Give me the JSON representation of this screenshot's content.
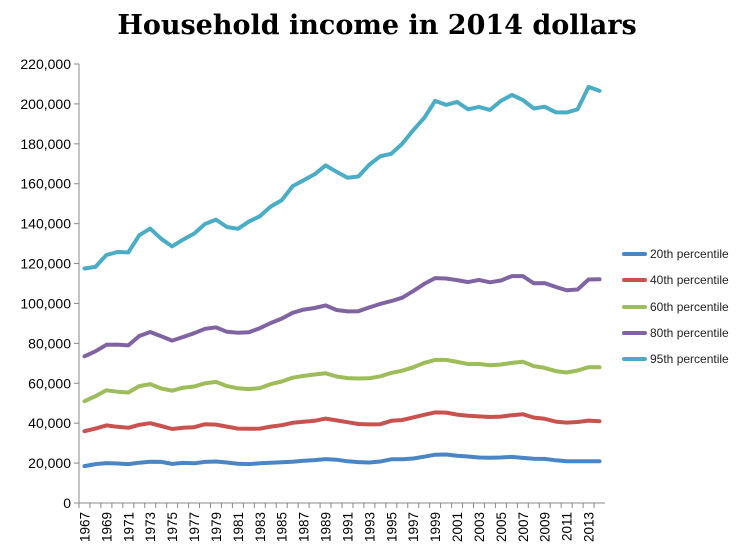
{
  "chart_data": {
    "type": "line",
    "title": "Household income in 2014 dollars",
    "xlabel": "",
    "ylabel": "",
    "x": [
      1967,
      1968,
      1969,
      1970,
      1971,
      1972,
      1973,
      1974,
      1975,
      1976,
      1977,
      1978,
      1979,
      1980,
      1981,
      1982,
      1983,
      1984,
      1985,
      1986,
      1987,
      1988,
      1989,
      1990,
      1991,
      1992,
      1993,
      1994,
      1995,
      1996,
      1997,
      1998,
      1999,
      2000,
      2001,
      2002,
      2003,
      2004,
      2005,
      2006,
      2007,
      2008,
      2009,
      2010,
      2011,
      2012,
      2013,
      2014
    ],
    "x_tick_labels": [
      "1967",
      "1969",
      "1971",
      "1973",
      "1975",
      "1977",
      "1979",
      "1981",
      "1983",
      "1985",
      "1987",
      "1989",
      "1991",
      "1993",
      "1995",
      "1997",
      "1999",
      "2001",
      "2003",
      "2005",
      "2007",
      "2009",
      "2011",
      "2013"
    ],
    "y_tick_labels": [
      "0",
      "20,000",
      "40,000",
      "60,000",
      "80,000",
      "100,000",
      "120,000",
      "140,000",
      "160,000",
      "180,000",
      "200,000",
      "220,000"
    ],
    "ylim": [
      0,
      220000
    ],
    "grid": false,
    "legend_position": "right",
    "series": [
      {
        "name": "20th percentile",
        "color": "#4a86c5",
        "values": [
          18500,
          19500,
          20000,
          19800,
          19500,
          20200,
          20700,
          20600,
          19600,
          20100,
          19900,
          20600,
          20800,
          20300,
          19700,
          19500,
          19900,
          20200,
          20400,
          20700,
          21200,
          21500,
          22000,
          21700,
          20900,
          20500,
          20300,
          20800,
          21900,
          21900,
          22300,
          23200,
          24200,
          24300,
          23700,
          23300,
          22800,
          22700,
          22800,
          23100,
          22600,
          22200,
          22100,
          21400,
          20900,
          20900,
          20900,
          20900
        ]
      },
      {
        "name": "40th percentile",
        "color": "#c9524f",
        "values": [
          36000,
          37300,
          38900,
          38200,
          37700,
          39200,
          40000,
          38600,
          37100,
          37700,
          38000,
          39500,
          39300,
          38300,
          37300,
          37200,
          37300,
          38300,
          39000,
          40200,
          40700,
          41200,
          42300,
          41400,
          40500,
          39600,
          39400,
          39500,
          41200,
          41600,
          42900,
          44200,
          45400,
          45300,
          44300,
          43700,
          43400,
          43100,
          43300,
          44000,
          44500,
          42800,
          42200,
          40800,
          40300,
          40600,
          41300,
          41000
        ]
      },
      {
        "name": "60th percentile",
        "color": "#9cbd59",
        "values": [
          51000,
          53500,
          56500,
          55800,
          55400,
          58600,
          59600,
          57400,
          56300,
          57800,
          58400,
          60000,
          60700,
          58600,
          57500,
          57100,
          57600,
          59600,
          60900,
          62800,
          63700,
          64400,
          65000,
          63400,
          62600,
          62400,
          62500,
          63500,
          65200,
          66300,
          68000,
          70200,
          71700,
          71700,
          70700,
          69600,
          69700,
          69000,
          69400,
          70200,
          70800,
          68600,
          67700,
          66100,
          65400,
          66400,
          68100,
          68000
        ]
      },
      {
        "name": "80th percentile",
        "color": "#8064a2",
        "values": [
          73500,
          76000,
          79300,
          79400,
          79000,
          83700,
          85700,
          83600,
          81400,
          83200,
          85100,
          87300,
          88000,
          85800,
          85300,
          85600,
          87600,
          90200,
          92400,
          95300,
          96900,
          97700,
          99000,
          96700,
          96000,
          96100,
          98000,
          99800,
          101200,
          102900,
          106200,
          109800,
          112700,
          112500,
          111700,
          110700,
          111800,
          110600,
          111500,
          113700,
          113700,
          110100,
          110200,
          108300,
          106600,
          107000,
          112000,
          112100
        ]
      },
      {
        "name": "95th percentile",
        "color": "#4bacc6",
        "values": [
          117500,
          118300,
          124300,
          125800,
          125600,
          134200,
          137500,
          132400,
          128600,
          132000,
          135000,
          139800,
          142000,
          138300,
          137400,
          141000,
          143700,
          148600,
          151700,
          158800,
          161700,
          164700,
          169200,
          166000,
          163000,
          163600,
          169600,
          173800,
          175000,
          180100,
          186800,
          193000,
          201500,
          199500,
          201000,
          197300,
          198500,
          197000,
          201500,
          204500,
          202000,
          197700,
          198600,
          195800,
          195700,
          197300,
          208500,
          206500
        ]
      }
    ]
  }
}
